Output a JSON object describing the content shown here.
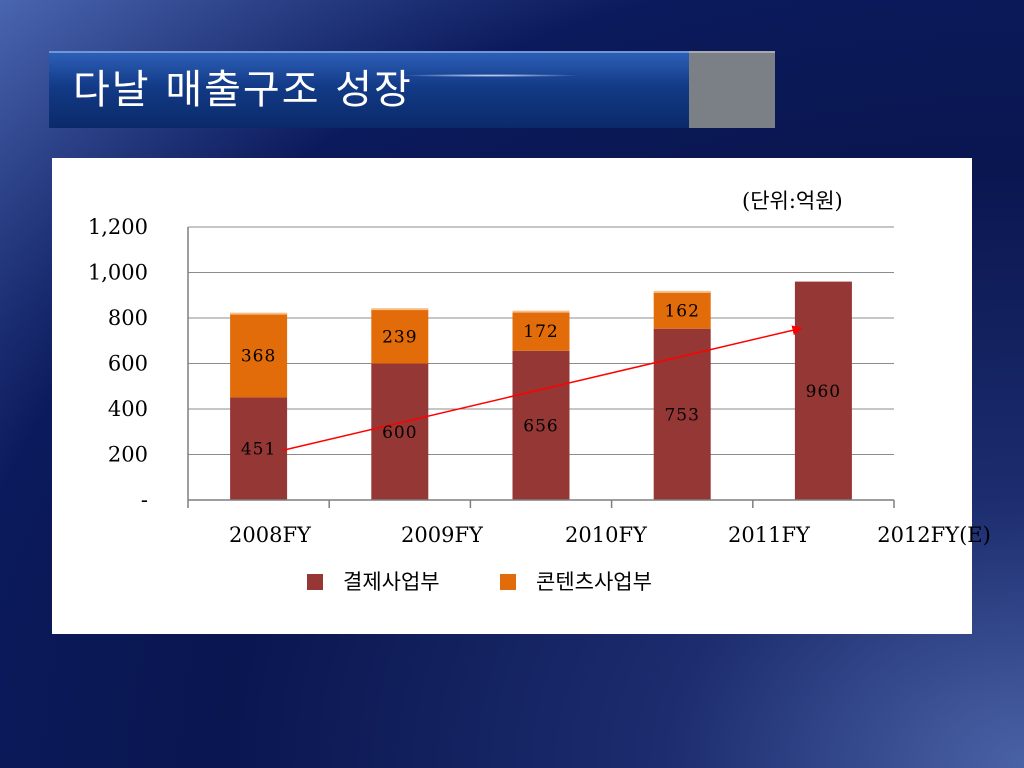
{
  "slide": {
    "title": "다날 매출구조 성장"
  },
  "chart_data": {
    "type": "bar",
    "stacked": true,
    "unit_note": "(단위:억원)",
    "categories": [
      "2008FY",
      "2009FY",
      "2010FY",
      "2011FY",
      "2012FY(E)"
    ],
    "series": [
      {
        "name": "결제사업부",
        "color": "#953735",
        "values": [
          451,
          600,
          656,
          753,
          960
        ]
      },
      {
        "name": "콘텐츠사업부",
        "color": "#e36c0a",
        "values": [
          368,
          239,
          172,
          162,
          null
        ]
      }
    ],
    "ylim": [
      0,
      1200
    ],
    "yticks": [
      0,
      200,
      400,
      600,
      800,
      1000,
      1200
    ],
    "ytick_labels": [
      "-",
      "200",
      "400",
      "600",
      "800",
      "1,000",
      "1,200"
    ],
    "grid": true,
    "legend": "bottom",
    "trend_arrow": {
      "from": "2008FY",
      "to": "2012FY(E)",
      "color": "#ff0000"
    }
  }
}
